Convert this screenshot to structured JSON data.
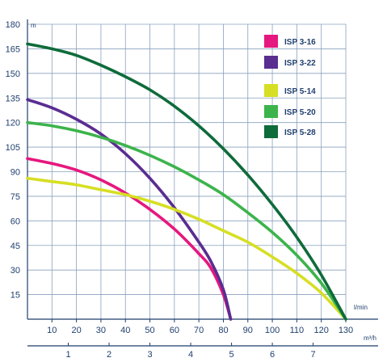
{
  "chart_data": {
    "type": "line",
    "title": "",
    "y_unit": "m",
    "x_unit": "l/min",
    "x2_unit": "m³/h",
    "ylim": [
      0,
      180
    ],
    "xlim": [
      0,
      130
    ],
    "x2lim": [
      0,
      7.8
    ],
    "y_ticks": [
      15,
      30,
      45,
      60,
      75,
      90,
      105,
      120,
      135,
      150,
      165,
      180
    ],
    "x_ticks": [
      10,
      20,
      30,
      40,
      50,
      60,
      70,
      80,
      90,
      100,
      110,
      120,
      130
    ],
    "x2_ticks": [
      1,
      2,
      3,
      4,
      5,
      6,
      7
    ],
    "grid": true,
    "legend_position": "top-right",
    "series": [
      {
        "name": "ISP 3-16",
        "color": "#e6177e",
        "points": [
          [
            0,
            98
          ],
          [
            10,
            95
          ],
          [
            20,
            91
          ],
          [
            30,
            85
          ],
          [
            40,
            77
          ],
          [
            50,
            67
          ],
          [
            60,
            55
          ],
          [
            70,
            40
          ],
          [
            75,
            31
          ],
          [
            80,
            15
          ],
          [
            83,
            0
          ]
        ]
      },
      {
        "name": "ISP 3-22",
        "color": "#5a2d91",
        "points": [
          [
            0,
            134
          ],
          [
            10,
            129
          ],
          [
            20,
            122
          ],
          [
            30,
            113
          ],
          [
            40,
            101
          ],
          [
            50,
            86
          ],
          [
            60,
            68
          ],
          [
            70,
            47
          ],
          [
            75,
            35
          ],
          [
            80,
            18
          ],
          [
            83,
            0
          ]
        ]
      },
      {
        "name": "ISP 5-14",
        "color": "#d6df23",
        "points": [
          [
            0,
            86
          ],
          [
            10,
            84
          ],
          [
            20,
            82
          ],
          [
            30,
            79
          ],
          [
            40,
            76
          ],
          [
            50,
            72
          ],
          [
            60,
            67
          ],
          [
            70,
            61
          ],
          [
            80,
            54
          ],
          [
            90,
            47
          ],
          [
            100,
            38
          ],
          [
            110,
            28
          ],
          [
            120,
            16
          ],
          [
            130,
            0
          ]
        ]
      },
      {
        "name": "ISP 5-20",
        "color": "#3cb44b",
        "points": [
          [
            0,
            120
          ],
          [
            10,
            118
          ],
          [
            20,
            115
          ],
          [
            30,
            111
          ],
          [
            40,
            106
          ],
          [
            50,
            100
          ],
          [
            60,
            93
          ],
          [
            70,
            85
          ],
          [
            80,
            76
          ],
          [
            90,
            65
          ],
          [
            100,
            53
          ],
          [
            110,
            39
          ],
          [
            120,
            22
          ],
          [
            130,
            0
          ]
        ]
      },
      {
        "name": "ISP 5-28",
        "color": "#0e6b3a",
        "points": [
          [
            0,
            168
          ],
          [
            10,
            165
          ],
          [
            20,
            161
          ],
          [
            30,
            155
          ],
          [
            40,
            148
          ],
          [
            50,
            140
          ],
          [
            60,
            130
          ],
          [
            70,
            118
          ],
          [
            80,
            104
          ],
          [
            90,
            88
          ],
          [
            100,
            70
          ],
          [
            110,
            50
          ],
          [
            120,
            27
          ],
          [
            130,
            0
          ]
        ]
      }
    ]
  }
}
